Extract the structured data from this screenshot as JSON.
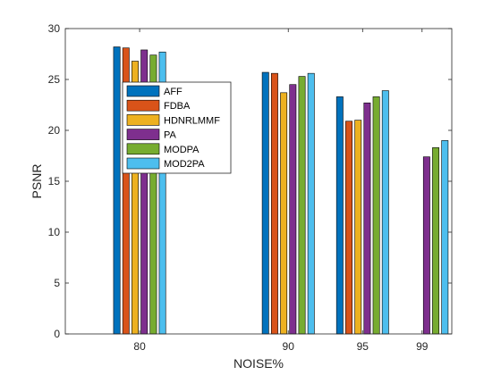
{
  "chart_data": {
    "type": "bar",
    "xlabel": "NOISE%",
    "ylabel": "PSNR",
    "x": [
      80,
      90,
      95,
      99
    ],
    "xlim": [
      75,
      101
    ],
    "ylim": [
      0,
      30
    ],
    "yticks": [
      0,
      5,
      10,
      15,
      20,
      25,
      30
    ],
    "legend_position": "upper-left-inside",
    "grid": false,
    "series": [
      {
        "name": "AFF",
        "color": "#0072BD",
        "values": [
          28.2,
          25.7,
          23.3,
          null
        ]
      },
      {
        "name": "FDBA",
        "color": "#D95319",
        "values": [
          28.1,
          25.6,
          20.9,
          null
        ]
      },
      {
        "name": "HDNRLMMF",
        "color": "#EDB120",
        "values": [
          26.8,
          23.7,
          21.0,
          null
        ]
      },
      {
        "name": "PA",
        "color": "#7E2F8E",
        "values": [
          27.9,
          24.5,
          22.7,
          17.4
        ]
      },
      {
        "name": "MODPA",
        "color": "#77AC30",
        "values": [
          27.4,
          25.3,
          23.3,
          18.3
        ]
      },
      {
        "name": "MOD2PA",
        "color": "#4DBEEE",
        "values": [
          27.7,
          25.6,
          23.9,
          19.0
        ]
      }
    ]
  }
}
